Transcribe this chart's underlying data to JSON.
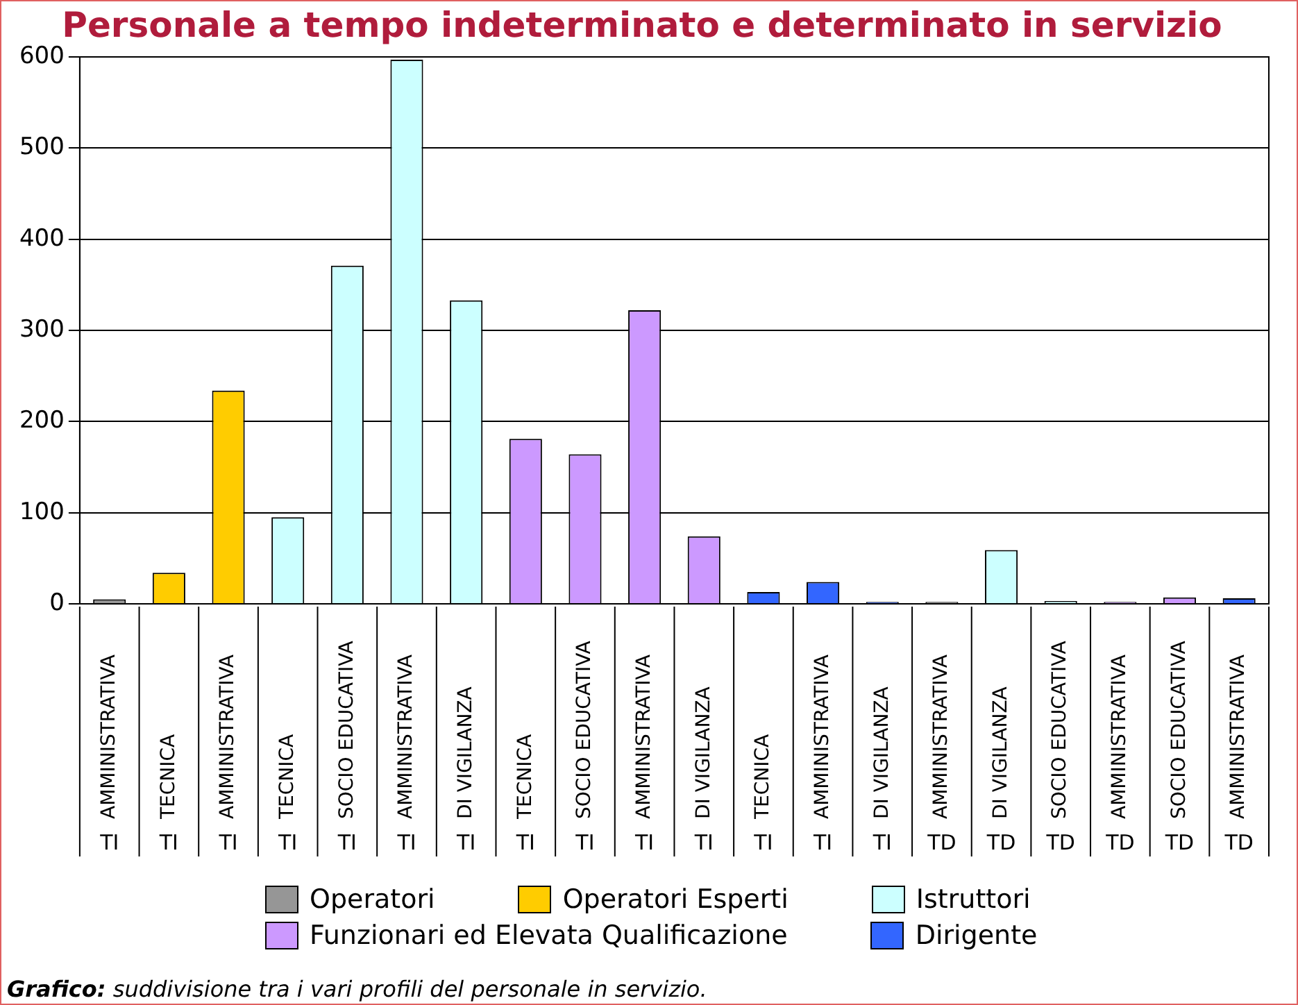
{
  "chart_data": {
    "type": "bar",
    "title": "Personale a tempo indeterminato e determinato in servizio",
    "categories": [
      "AMMINISTRATIVA\nTI",
      "TECNICA\nTI",
      "AMMINISTRATIVA\nTI",
      "TECNICA\nTI",
      "SOCIO EDUCATIVA\nTI",
      "AMMINISTRATIVA\nTI",
      "DI VIGILANZA\nTI",
      "TECNICA\nTI",
      "SOCIO EDUCATIVA\nTI",
      "AMMINISTRATIVA\nTI",
      "DI VIGILANZA\nTI",
      "TECNICA\nTI",
      "AMMINISTRATIVA\nTI",
      "DI VIGILANZA\nTI",
      "AMMINISTRATIVA\nTD",
      "DI VIGILANZA\nTD",
      "SOCIO EDUCATIVA\nTD",
      "AMMINISTRATIVA\nTD",
      "SOCIO EDUCATIVA\nTD",
      "AMMINISTRATIVA\nTD"
    ],
    "series": [
      {
        "name": "Operatori",
        "color": "#969696",
        "values": [
          5,
          null,
          null,
          null,
          null,
          null,
          null,
          null,
          null,
          null,
          null,
          null,
          null,
          null,
          2,
          null,
          null,
          null,
          null,
          null
        ]
      },
      {
        "name": "Operatori Esperti",
        "color": "#ffcc00",
        "values": [
          null,
          34,
          234,
          null,
          null,
          null,
          null,
          null,
          null,
          null,
          null,
          null,
          null,
          null,
          null,
          null,
          null,
          null,
          null,
          null
        ]
      },
      {
        "name": "Istruttori",
        "color": "#ccffff",
        "values": [
          null,
          null,
          null,
          95,
          371,
          597,
          333,
          null,
          null,
          null,
          null,
          null,
          null,
          null,
          null,
          59,
          3,
          null,
          null,
          null
        ]
      },
      {
        "name": "Funzionari ed Elevata Qualificazione",
        "color": "#cc99ff",
        "values": [
          null,
          null,
          null,
          null,
          null,
          null,
          null,
          181,
          164,
          322,
          74,
          null,
          null,
          null,
          null,
          null,
          null,
          2,
          7,
          null
        ]
      },
      {
        "name": "Dirigente",
        "color": "#3366ff",
        "values": [
          null,
          null,
          null,
          null,
          null,
          null,
          null,
          null,
          null,
          null,
          null,
          13,
          24,
          2,
          null,
          null,
          null,
          null,
          null,
          6
        ]
      }
    ],
    "stacked": true,
    "ylim": [
      0,
      600
    ],
    "yticks": [
      0,
      100,
      200,
      300,
      400,
      500,
      600
    ],
    "grid": "y",
    "legend": "bottom",
    "annotations": [
      "Grafico: suddivisione tra i vari profili del personale in servizio."
    ]
  }
}
